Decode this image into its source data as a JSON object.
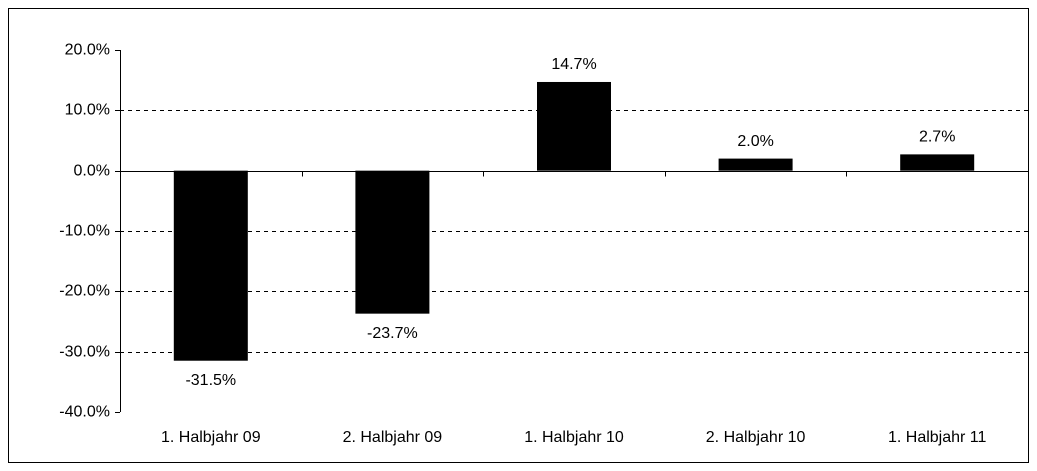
{
  "chart_data": {
    "type": "bar",
    "categories": [
      "1. Halbjahr 09",
      "2. Halbjahr 09",
      "1. Halbjahr 10",
      "2. Halbjahr 10",
      "1. Halbjahr 11"
    ],
    "values": [
      -31.5,
      -23.7,
      14.7,
      2.0,
      2.7
    ],
    "value_labels": [
      "-31.5%",
      "-23.7%",
      "14.7%",
      "2.0%",
      "2.7%"
    ],
    "color": "#000000",
    "ylim": [
      -40,
      20
    ],
    "yticks": [
      {
        "value": -40,
        "label": "-40.0%"
      },
      {
        "value": -30,
        "label": "-30.0%"
      },
      {
        "value": -20,
        "label": "-20.0%"
      },
      {
        "value": -10,
        "label": "-10.0%"
      },
      {
        "value": 0,
        "label": "0.0%"
      },
      {
        "value": 10,
        "label": "10.0%"
      },
      {
        "value": 20,
        "label": "20.0%"
      }
    ],
    "grid": true
  }
}
